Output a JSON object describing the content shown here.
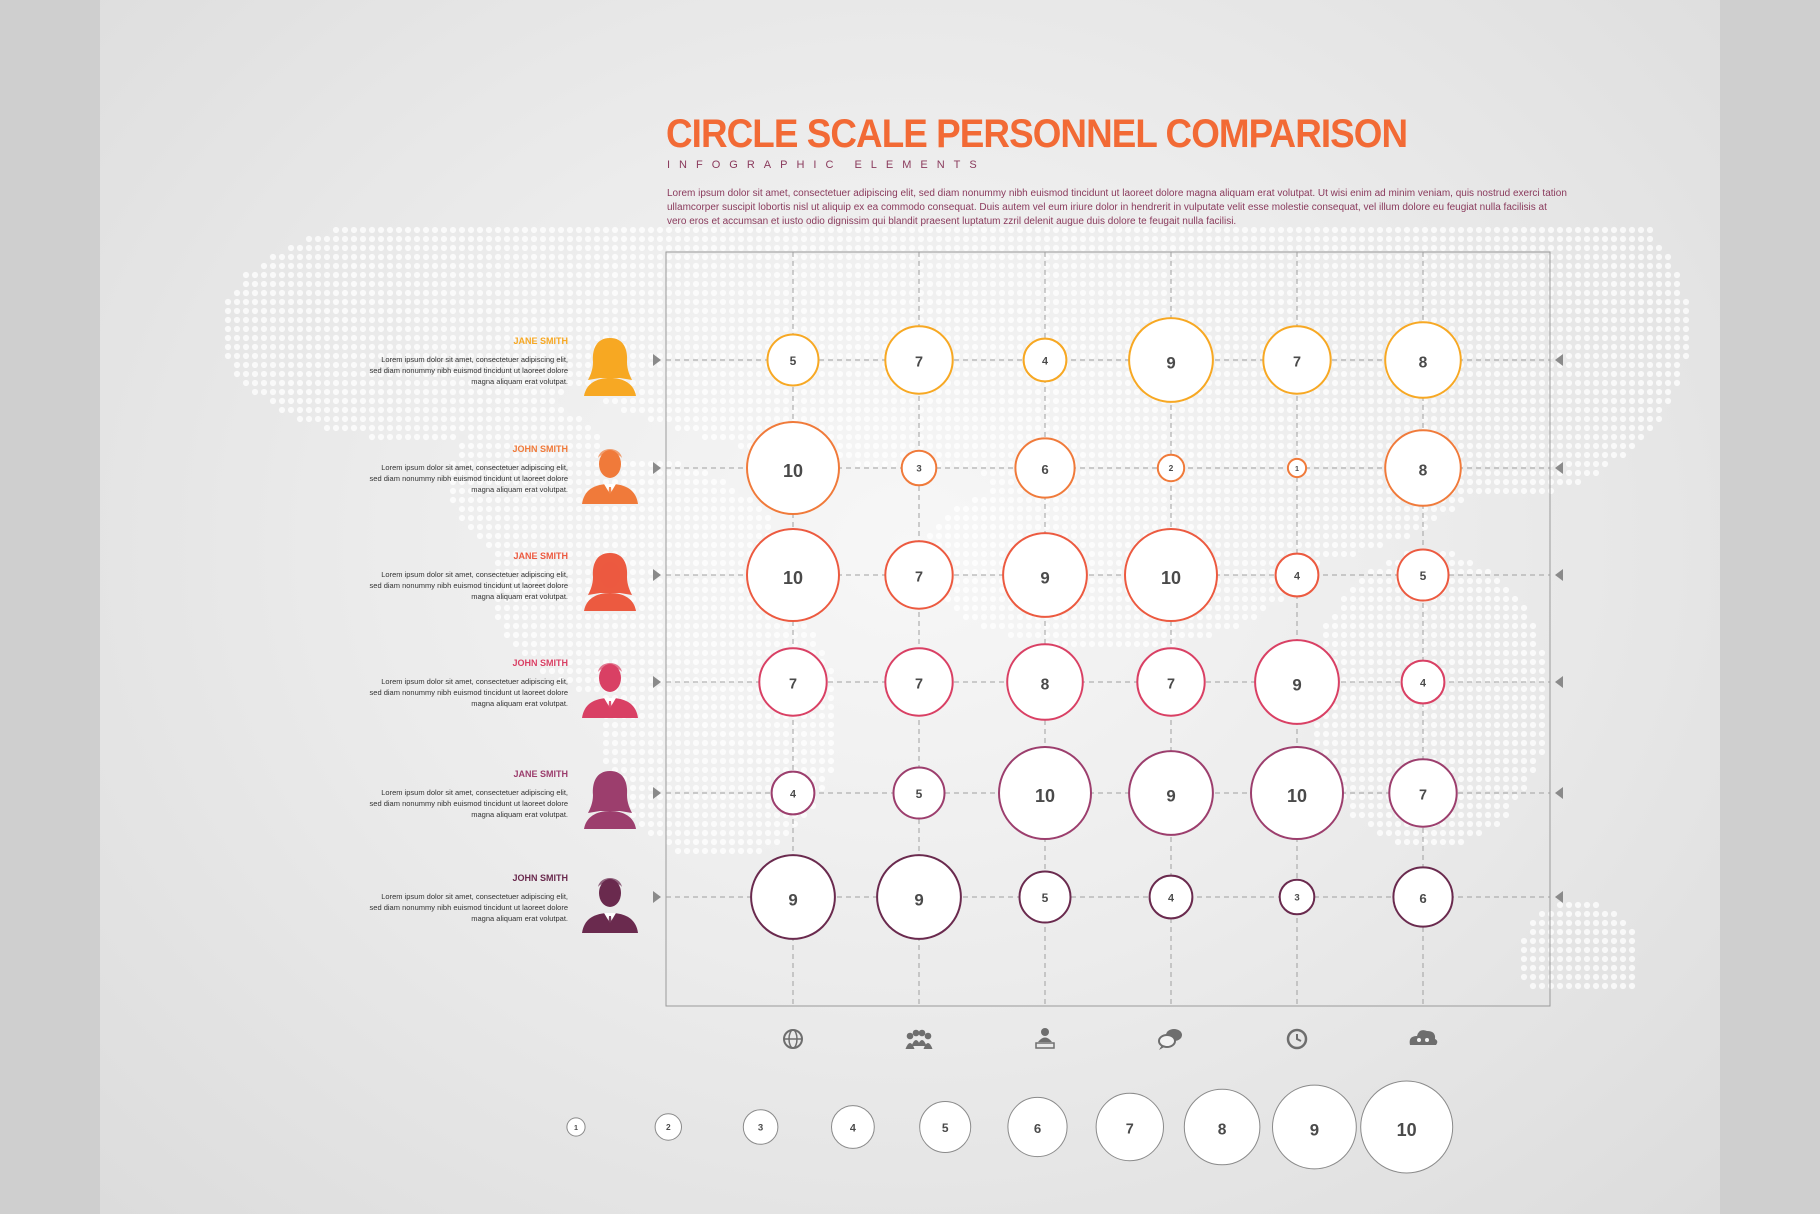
{
  "title": "CIRCLE SCALE PERSONNEL COMPARISON",
  "subtitle": "INFOGRAPHIC ELEMENTS",
  "intro": "Lorem ipsum dolor sit amet, consectetuer adipiscing elit, sed diam nonummy nibh euismod tincidunt ut laoreet dolore magna aliquam erat volutpat. Ut wisi enim ad minim veniam, quis nostrud exerci tation ullamcorper suscipit lobortis nisl ut aliquip ex ea commodo consequat. Duis autem vel eum iriure dolor in hendrerit in vulputate velit esse molestie consequat, vel illum dolore eu feugiat nulla facilisis at vero eros et accumsan et iusto odio dignissim qui blandit praesent luptatum zzril delenit augue duis dolore te feugait nulla facilisi.",
  "colors": {
    "title": "#f26a35",
    "subtitle": "#8a3a5c",
    "rows": [
      "#f7a823",
      "#f07a3a",
      "#ec5a40",
      "#d94064",
      "#9c3e6d",
      "#6a2a4e"
    ]
  },
  "people": [
    {
      "name": "JANE SMITH",
      "gender": "female",
      "desc": "Lorem ipsum dolor sit amet, consectetuer adipiscing elit, sed diam nonummy nibh euismod tincidunt ut laoreet dolore magna aliquam erat volutpat."
    },
    {
      "name": "JOHN SMITH",
      "gender": "male",
      "desc": "Lorem ipsum dolor sit amet, consectetuer adipiscing elit, sed diam nonummy nibh euismod tincidunt ut laoreet dolore magna aliquam erat volutpat."
    },
    {
      "name": "JANE SMITH",
      "gender": "female",
      "desc": "Lorem ipsum dolor sit amet, consectetuer adipiscing elit, sed diam nonummy nibh euismod tincidunt ut laoreet dolore magna aliquam erat volutpat."
    },
    {
      "name": "JOHN SMITH",
      "gender": "male",
      "desc": "Lorem ipsum dolor sit amet, consectetuer adipiscing elit, sed diam nonummy nibh euismod tincidunt ut laoreet dolore magna aliquam erat volutpat."
    },
    {
      "name": "JANE SMITH",
      "gender": "female",
      "desc": "Lorem ipsum dolor sit amet, consectetuer adipiscing elit, sed diam nonummy nibh euismod tincidunt ut laoreet dolore magna aliquam erat volutpat."
    },
    {
      "name": "JOHN SMITH",
      "gender": "male",
      "desc": "Lorem ipsum dolor sit amet, consectetuer adipiscing elit, sed diam nonummy nibh euismod tincidunt ut laoreet dolore magna aliquam erat volutpat."
    }
  ],
  "chart_data": {
    "type": "bubble-matrix",
    "rows": [
      "JANE SMITH",
      "JOHN SMITH",
      "JANE SMITH",
      "JOHN SMITH",
      "JANE SMITH",
      "JOHN SMITH"
    ],
    "columns": [
      "globe-icon",
      "people-group-icon",
      "user-laptop-icon",
      "chat-bubbles-icon",
      "clock-icon",
      "cloud-users-icon"
    ],
    "values": [
      [
        5,
        7,
        4,
        9,
        7,
        8
      ],
      [
        10,
        3,
        6,
        2,
        1,
        8
      ],
      [
        10,
        7,
        9,
        10,
        4,
        5
      ],
      [
        7,
        7,
        8,
        7,
        9,
        4
      ],
      [
        4,
        5,
        10,
        9,
        10,
        7
      ],
      [
        9,
        9,
        5,
        4,
        3,
        6
      ]
    ],
    "scale": [
      1,
      2,
      3,
      4,
      5,
      6,
      7,
      8,
      9,
      10
    ],
    "range": [
      1,
      10
    ],
    "grid": true
  }
}
